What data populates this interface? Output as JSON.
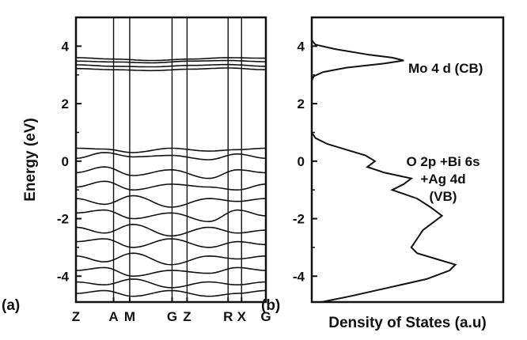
{
  "chart_data": [
    {
      "type": "line",
      "panel_label": "(a)",
      "ylabel": "Energy (eV)",
      "ylim": [
        -4.9,
        5.0
      ],
      "yticks": [
        -4,
        -2,
        0,
        2,
        4
      ],
      "ytick_labels": [
        "-4",
        "-2",
        "0",
        "2",
        "4"
      ],
      "k_points": [
        "Z",
        "A",
        "M",
        "G",
        "Z",
        "R",
        "X",
        "G"
      ],
      "k_positions": [
        0,
        0.198,
        0.283,
        0.506,
        0.585,
        0.801,
        0.872,
        1.0
      ],
      "grid": false,
      "series": [
        {
          "x": [
            0,
            0.2,
            0.4,
            0.6,
            0.8,
            1.0
          ],
          "y": [
            3.6,
            3.55,
            3.5,
            3.55,
            3.6,
            3.58
          ]
        },
        {
          "x": [
            0,
            0.2,
            0.4,
            0.6,
            0.8,
            1.0
          ],
          "y": [
            3.48,
            3.45,
            3.42,
            3.48,
            3.5,
            3.46
          ]
        },
        {
          "x": [
            0,
            0.2,
            0.4,
            0.6,
            0.8,
            1.0
          ],
          "y": [
            3.35,
            3.3,
            3.28,
            3.33,
            3.36,
            3.3
          ]
        },
        {
          "x": [
            0,
            0.2,
            0.4,
            0.6,
            0.8,
            1.0
          ],
          "y": [
            3.22,
            3.18,
            3.15,
            3.2,
            3.24,
            3.18
          ]
        },
        {
          "x": [
            0,
            0.15,
            0.3,
            0.5,
            0.7,
            0.85,
            1.0
          ],
          "y": [
            0.45,
            0.42,
            0.3,
            0.45,
            0.35,
            0.4,
            0.45
          ]
        },
        {
          "x": [
            0,
            0.15,
            0.3,
            0.5,
            0.7,
            0.85,
            1.0
          ],
          "y": [
            0.1,
            0.3,
            0.15,
            0.2,
            0.05,
            0.25,
            0.1
          ]
        },
        {
          "x": [
            0,
            0.15,
            0.3,
            0.5,
            0.7,
            0.85,
            1.0
          ],
          "y": [
            -0.4,
            -0.2,
            -0.5,
            -0.3,
            -0.6,
            -0.3,
            -0.4
          ]
        },
        {
          "x": [
            0,
            0.15,
            0.3,
            0.5,
            0.7,
            0.85,
            1.0
          ],
          "y": [
            -0.9,
            -0.7,
            -1.0,
            -0.8,
            -0.9,
            -1.0,
            -0.8
          ]
        },
        {
          "x": [
            0,
            0.15,
            0.3,
            0.5,
            0.7,
            0.85,
            1.0
          ],
          "y": [
            -1.3,
            -1.5,
            -1.2,
            -1.6,
            -1.3,
            -1.4,
            -1.3
          ]
        },
        {
          "x": [
            0,
            0.15,
            0.3,
            0.5,
            0.7,
            0.85,
            1.0
          ],
          "y": [
            -1.8,
            -1.7,
            -2.0,
            -1.8,
            -2.1,
            -1.7,
            -1.9
          ]
        },
        {
          "x": [
            0,
            0.15,
            0.3,
            0.5,
            0.7,
            0.85,
            1.0
          ],
          "y": [
            -2.3,
            -2.5,
            -2.2,
            -2.6,
            -2.3,
            -2.5,
            -2.4
          ]
        },
        {
          "x": [
            0,
            0.15,
            0.3,
            0.5,
            0.7,
            0.85,
            1.0
          ],
          "y": [
            -2.8,
            -2.7,
            -3.0,
            -2.7,
            -3.0,
            -2.8,
            -2.9
          ]
        },
        {
          "x": [
            0,
            0.15,
            0.3,
            0.5,
            0.7,
            0.85,
            1.0
          ],
          "y": [
            -3.3,
            -3.5,
            -3.2,
            -3.6,
            -3.3,
            -3.4,
            -3.3
          ]
        },
        {
          "x": [
            0,
            0.15,
            0.3,
            0.5,
            0.7,
            0.85,
            1.0
          ],
          "y": [
            -3.8,
            -3.7,
            -4.0,
            -3.8,
            -3.9,
            -3.7,
            -3.8
          ]
        },
        {
          "x": [
            0,
            0.15,
            0.3,
            0.5,
            0.7,
            0.85,
            1.0
          ],
          "y": [
            -4.2,
            -4.3,
            -4.1,
            -4.4,
            -4.2,
            -4.3,
            -4.2
          ]
        },
        {
          "x": [
            0,
            0.15,
            0.3,
            0.5,
            0.7,
            0.85,
            1.0
          ],
          "y": [
            -4.6,
            -4.5,
            -4.7,
            -4.5,
            -4.7,
            -4.6,
            -4.5
          ]
        }
      ]
    },
    {
      "type": "line",
      "panel_label": "(b)",
      "xlabel": "Density of States (a.u)",
      "ylim": [
        -4.9,
        5.0
      ],
      "yticks": [
        -4,
        -2,
        0,
        2,
        4
      ],
      "ytick_labels": [
        "-4",
        "-2",
        "0",
        "2",
        "4"
      ],
      "grid": false,
      "series": [
        {
          "x": [
            0.0,
            0.0,
            0.02,
            0.12,
            0.3,
            0.42,
            0.48,
            0.38,
            0.18,
            0.06,
            0.01,
            0.0,
            0.0,
            0.0,
            0.02,
            0.08,
            0.18,
            0.28,
            0.33,
            0.29,
            0.38,
            0.52,
            0.48,
            0.42,
            0.55,
            0.62,
            0.68,
            0.64,
            0.58,
            0.55,
            0.52,
            0.55,
            0.65,
            0.75,
            0.72,
            0.6,
            0.4,
            0.2,
            0.05
          ],
          "y": [
            5.0,
            4.2,
            4.05,
            3.9,
            3.7,
            3.6,
            3.5,
            3.4,
            3.25,
            3.1,
            2.95,
            2.8,
            1.5,
            1.0,
            0.8,
            0.6,
            0.4,
            0.2,
            0.0,
            -0.2,
            -0.4,
            -0.6,
            -0.8,
            -1.0,
            -1.3,
            -1.6,
            -1.9,
            -2.1,
            -2.4,
            -2.7,
            -3.0,
            -3.2,
            -3.4,
            -3.6,
            -3.8,
            -4.1,
            -4.4,
            -4.7,
            -4.9
          ]
        }
      ],
      "annotations": [
        "Mo 4 d (CB)",
        "O 2p +Bi 6s",
        "+Ag 4d",
        "(VB)"
      ]
    }
  ]
}
